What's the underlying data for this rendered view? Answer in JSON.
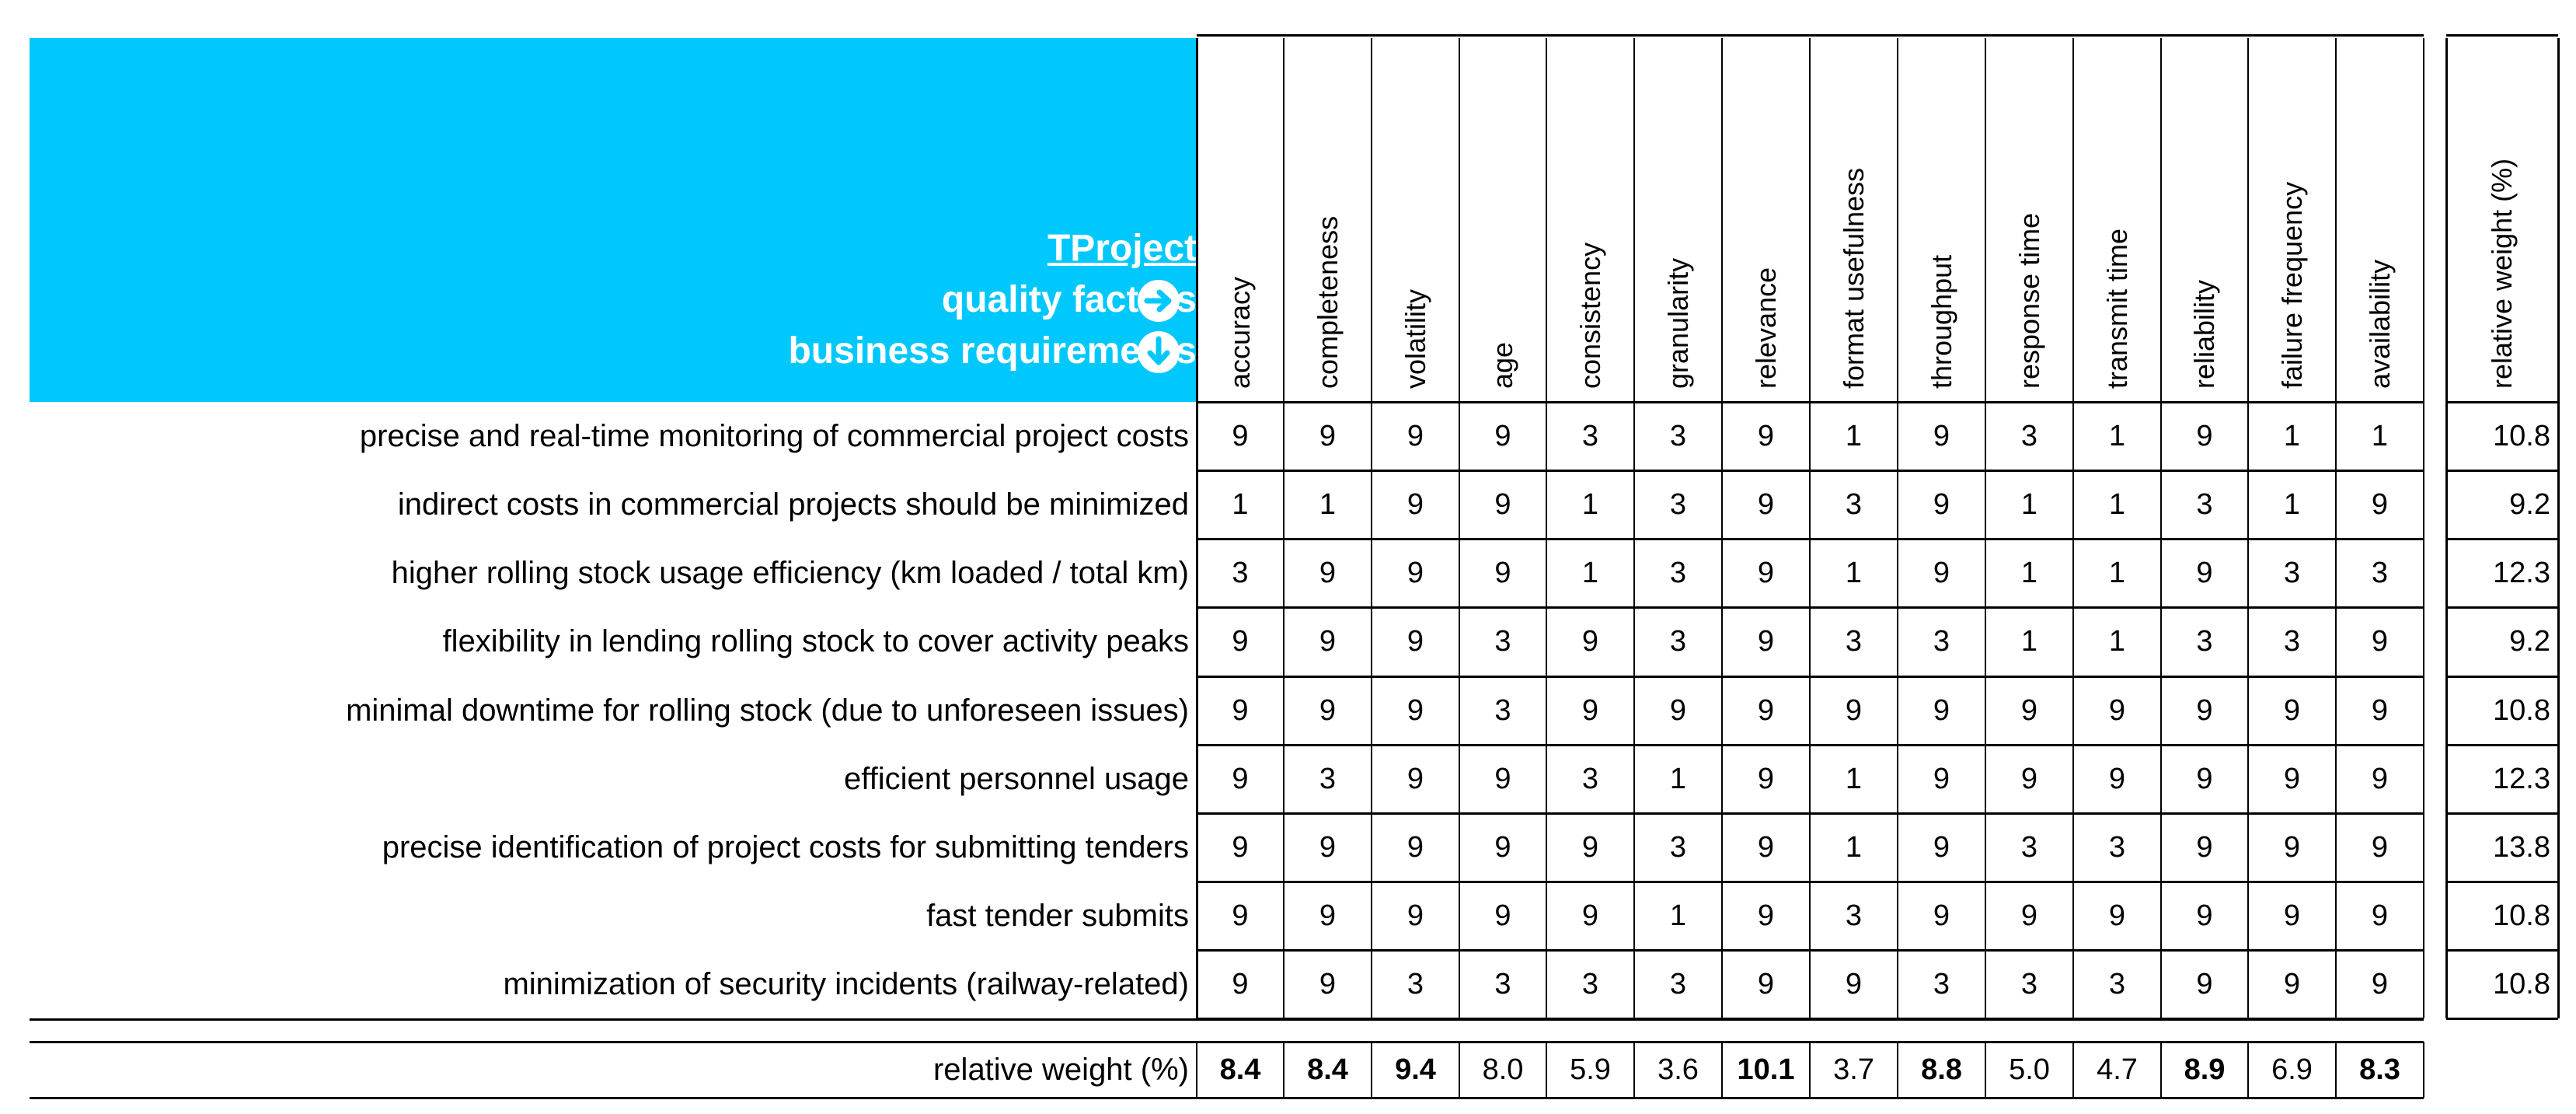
{
  "header": {
    "project_link": "TProject",
    "quality_factors_label": "quality factors",
    "business_requirements_label": "business requirements",
    "arrow_right_icon": "arrow-right-circle-icon",
    "arrow_down_icon": "arrow-down-circle-icon",
    "accent_color": "#00c8fc"
  },
  "columns": [
    "accuracy",
    "completeness",
    "volatility",
    "age",
    "consistency",
    "granularity",
    "relevance",
    "format usefulness",
    "throughput",
    "response time",
    "transmit time",
    "reliability",
    "failure frequency",
    "availability"
  ],
  "weight_column_label": "relative weight (%)",
  "rows": [
    {
      "label": "precise and real-time monitoring of commercial project costs",
      "values": [
        9,
        9,
        9,
        9,
        3,
        3,
        9,
        1,
        9,
        3,
        1,
        9,
        1,
        1
      ],
      "weight": "10.8"
    },
    {
      "label": "indirect costs in commercial projects should be minimized",
      "values": [
        1,
        1,
        9,
        9,
        1,
        3,
        9,
        3,
        9,
        1,
        1,
        3,
        1,
        9
      ],
      "weight": "9.2"
    },
    {
      "label": "higher rolling stock usage efficiency (km loaded / total km)",
      "values": [
        3,
        9,
        9,
        9,
        1,
        3,
        9,
        1,
        9,
        1,
        1,
        9,
        3,
        3
      ],
      "weight": "12.3"
    },
    {
      "label": "flexibility in lending rolling stock to cover activity peaks",
      "values": [
        9,
        9,
        9,
        3,
        9,
        3,
        9,
        3,
        3,
        1,
        1,
        3,
        3,
        9
      ],
      "weight": "9.2"
    },
    {
      "label": "minimal downtime for rolling stock (due to unforeseen issues)",
      "values": [
        9,
        9,
        9,
        3,
        9,
        9,
        9,
        9,
        9,
        9,
        9,
        9,
        9,
        9
      ],
      "weight": "10.8"
    },
    {
      "label": "efficient personnel usage",
      "values": [
        9,
        3,
        9,
        9,
        3,
        1,
        9,
        1,
        9,
        9,
        9,
        9,
        9,
        9
      ],
      "weight": "12.3"
    },
    {
      "label": "precise identification of project costs for submitting tenders",
      "values": [
        9,
        9,
        9,
        9,
        9,
        3,
        9,
        1,
        9,
        3,
        3,
        9,
        9,
        9
      ],
      "weight": "13.8"
    },
    {
      "label": "fast tender submits",
      "values": [
        9,
        9,
        9,
        9,
        9,
        1,
        9,
        3,
        9,
        9,
        9,
        9,
        9,
        9
      ],
      "weight": "10.8"
    },
    {
      "label": "minimization of security incidents (railway-related)",
      "values": [
        9,
        9,
        3,
        3,
        3,
        3,
        9,
        9,
        3,
        3,
        3,
        9,
        9,
        9
      ],
      "weight": "10.8"
    }
  ],
  "footer": {
    "label": "relative weight (%)",
    "values": [
      "8.4",
      "8.4",
      "9.4",
      "8.0",
      "5.9",
      "3.6",
      "10.1",
      "3.7",
      "8.8",
      "5.0",
      "4.7",
      "8.9",
      "6.9",
      "8.3"
    ],
    "bold": [
      true,
      true,
      true,
      false,
      false,
      false,
      true,
      false,
      true,
      false,
      false,
      true,
      false,
      true
    ]
  }
}
